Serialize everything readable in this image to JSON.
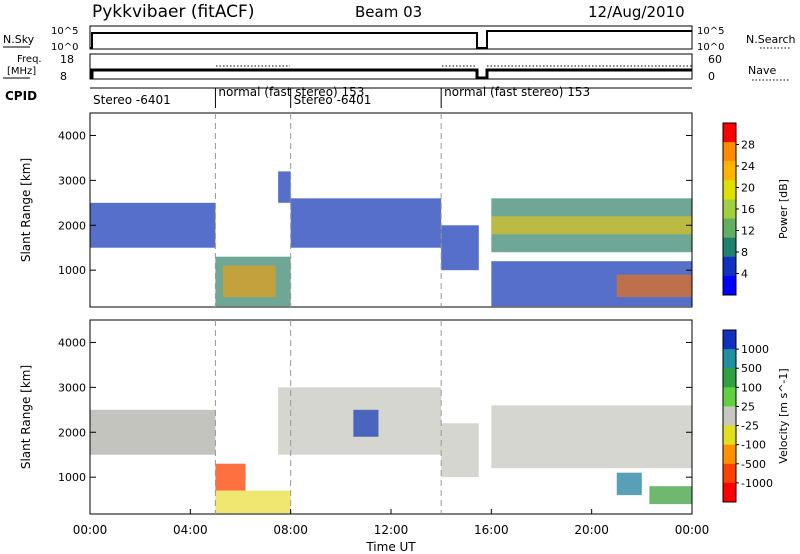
{
  "header": {
    "title": "Pykkvibaer (fitACF)",
    "beam": "Beam 03",
    "date": "12/Aug/2010"
  },
  "strip_labels": {
    "nsky": "N.Sky",
    "nsky_ticks": [
      "10^5",
      "10^0"
    ],
    "nsearch": "N.Search",
    "nsearch_ticks": [
      "10^5",
      "10^0"
    ],
    "freq_line1": "Freq.",
    "freq_line2": "[MHz]",
    "freq_ticks": [
      "18",
      "8"
    ],
    "nave": "Nave",
    "nave_ticks": [
      "60",
      "0"
    ],
    "cpid": "CPID"
  },
  "cpid_segments": [
    {
      "label": "Stereo -6401",
      "start": 0,
      "end": 5
    },
    {
      "label": "normal (fast stereo) 153",
      "start": 5,
      "end": 8
    },
    {
      "label": "Stereo -6401",
      "start": 8,
      "end": 14
    },
    {
      "label": "normal (fast stereo) 153",
      "start": 14,
      "end": 24
    }
  ],
  "chart_data": [
    {
      "type": "heatmap",
      "name": "Power",
      "ylabel": "Slant Range [km]",
      "colorbar_label": "Power [dB]",
      "colorbar_ticks": [
        "28",
        "24",
        "20",
        "16",
        "12",
        "8",
        "4"
      ],
      "colorbar_colors": [
        "#ff0000",
        "#ff8c00",
        "#ffb400",
        "#e0e000",
        "#a0d040",
        "#60b060",
        "#208070",
        "#1030c0",
        "#0000ff"
      ],
      "ylim": [
        180,
        4500
      ],
      "yticks": [
        "4000",
        "3000",
        "2000",
        "1000"
      ],
      "xlim_hours": [
        0,
        24
      ],
      "cells": [
        {
          "t0": 0,
          "t1": 5,
          "r0": 1500,
          "r1": 2500,
          "color": "#1c3fb8"
        },
        {
          "t0": 5,
          "t1": 8,
          "r0": 200,
          "r1": 1300,
          "color": "#3d8a72"
        },
        {
          "t0": 5.3,
          "t1": 7.4,
          "r0": 400,
          "r1": 1100,
          "color": "#e0a020"
        },
        {
          "t0": 7.5,
          "t1": 8,
          "r0": 2500,
          "r1": 3200,
          "color": "#1c3fb8"
        },
        {
          "t0": 8,
          "t1": 14,
          "r0": 1500,
          "r1": 2600,
          "color": "#1c3fb8"
        },
        {
          "t0": 14,
          "t1": 15.5,
          "r0": 1000,
          "r1": 2000,
          "color": "#1c3fb8"
        },
        {
          "t0": 16,
          "t1": 24,
          "r0": 1400,
          "r1": 2600,
          "color": "#3d8a72"
        },
        {
          "t0": 16,
          "t1": 24,
          "r0": 1800,
          "r1": 2200,
          "color": "#d8c028"
        },
        {
          "t0": 16,
          "t1": 24,
          "r0": 200,
          "r1": 1200,
          "color": "#1c3fb8"
        },
        {
          "t0": 21,
          "t1": 24,
          "r0": 400,
          "r1": 900,
          "color": "#e07020"
        }
      ]
    },
    {
      "type": "heatmap",
      "name": "Velocity",
      "ylabel": "Slant Range [km]",
      "colorbar_label": "Velocity [m s^-1]",
      "colorbar_ticks": [
        "1000",
        "500",
        "100",
        "25",
        "-25",
        "-100",
        "-500",
        "-1000"
      ],
      "colorbar_colors": [
        "#1030c0",
        "#2090a0",
        "#30a040",
        "#60d040",
        "#c8c8c0",
        "#e0e020",
        "#ff9000",
        "#ff4000",
        "#ff0000"
      ],
      "ylim": [
        180,
        4500
      ],
      "yticks": [
        "4000",
        "3000",
        "2000",
        "1000"
      ],
      "xlim_hours": [
        0,
        24
      ],
      "cells": [
        {
          "t0": 0,
          "t1": 5,
          "r0": 1500,
          "r1": 2500,
          "color": "#b0b0a8"
        },
        {
          "t0": 5,
          "t1": 6.2,
          "r0": 700,
          "r1": 1300,
          "color": "#ff4000"
        },
        {
          "t0": 5,
          "t1": 8,
          "r0": 200,
          "r1": 700,
          "color": "#e8e040"
        },
        {
          "t0": 7.5,
          "t1": 14,
          "r0": 1500,
          "r1": 3000,
          "color": "#c8c8c0"
        },
        {
          "t0": 10.5,
          "t1": 11.5,
          "r0": 1900,
          "r1": 2500,
          "color": "#1c3fb8"
        },
        {
          "t0": 14,
          "t1": 15.5,
          "r0": 1000,
          "r1": 2200,
          "color": "#c8c8c0"
        },
        {
          "t0": 16,
          "t1": 24,
          "r0": 1200,
          "r1": 2600,
          "color": "#c8c8c0"
        },
        {
          "t0": 21,
          "t1": 22,
          "r0": 600,
          "r1": 1100,
          "color": "#2080a0"
        },
        {
          "t0": 22.3,
          "t1": 24,
          "r0": 400,
          "r1": 800,
          "color": "#40a040"
        }
      ]
    }
  ],
  "xaxis": {
    "ticks": [
      "00:00",
      "04:00",
      "08:00",
      "12:00",
      "16:00",
      "20:00",
      "00:00"
    ],
    "tick_hours": [
      0,
      4,
      8,
      12,
      16,
      20,
      24
    ],
    "label": "Time UT"
  }
}
